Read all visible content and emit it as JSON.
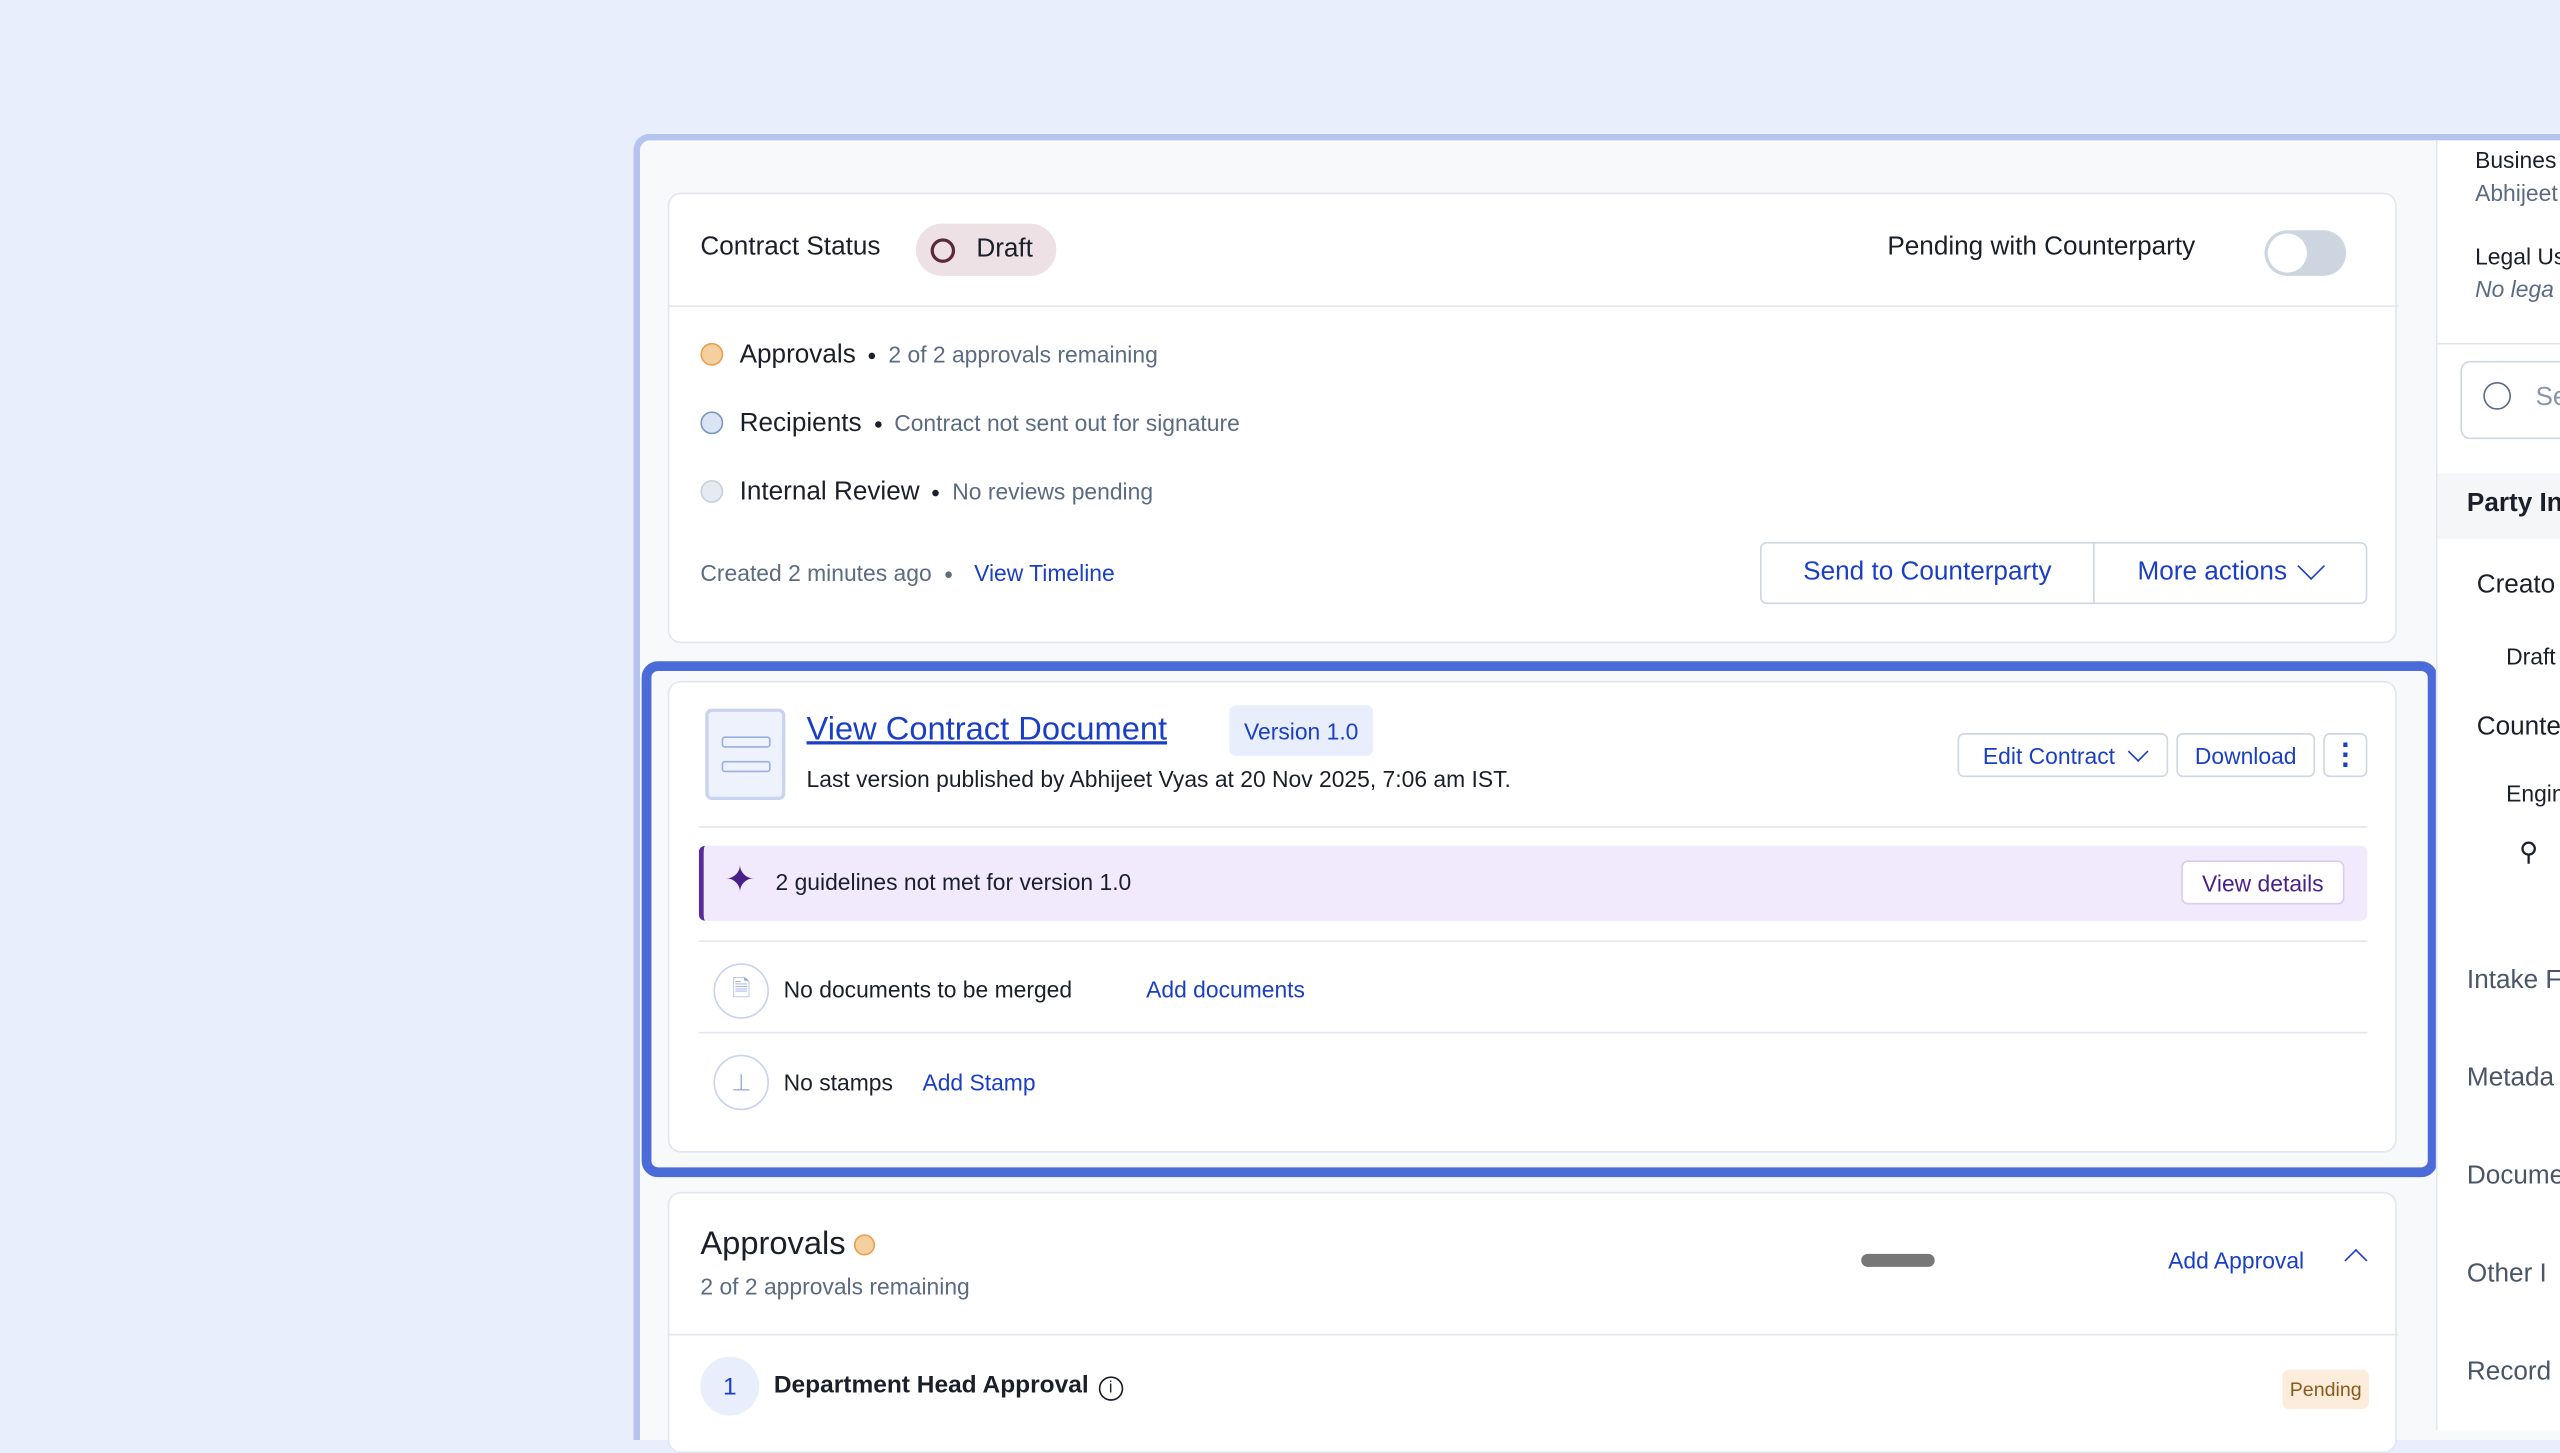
{
  "status_card": {
    "label": "Contract Status",
    "status": "Draft",
    "pending_label": "Pending with Counterparty",
    "pending_on": false,
    "rows": [
      {
        "title": "Approvals",
        "detail": "2 of 2 approvals remaining",
        "icon": "clock-icon"
      },
      {
        "title": "Recipients",
        "detail": "Contract not sent out for signature",
        "icon": "minus-circle-icon"
      },
      {
        "title": "Internal Review",
        "detail": "No reviews pending",
        "icon": "check-circle-icon"
      }
    ],
    "created": "Created 2 minutes ago",
    "view_timeline": "View Timeline",
    "send": "Send to Counterparty",
    "more": "More actions"
  },
  "document_card": {
    "title": "View Contract Document",
    "version": "Version 1.0",
    "published": "Last version published by Abhijeet Vyas at 20 Nov 2025, 7:06 am IST.",
    "edit": "Edit Contract",
    "download": "Download",
    "guidelines": "2 guidelines not met for version 1.0",
    "view_details": "View details",
    "merge_text": "No documents to be merged",
    "add_documents": "Add documents",
    "stamps_text": "No stamps",
    "add_stamp": "Add Stamp"
  },
  "approvals_card": {
    "title": "Approvals",
    "subtitle": "2 of 2 approvals remaining",
    "add": "Add Approval",
    "items": [
      {
        "index": "1",
        "name": "Department Head Approval",
        "status": "Pending"
      }
    ]
  },
  "right_panel": {
    "business_label": "Busines",
    "business_value": "Abhijeet",
    "legal_label": "Legal Us",
    "legal_value": "No lega",
    "search_placeholder": "Se",
    "party_heading": "Party In",
    "creator": "Creato",
    "creator_value": "Draft",
    "counter": "Counte",
    "counter_value": "Engin",
    "sections": [
      "Intake F",
      "Metada",
      "Docume",
      "Other I",
      "Record"
    ]
  },
  "colors": {
    "accent": "#1a3fc4",
    "highlight": "#4a6bd8",
    "banner": "#f1eafc",
    "pending_bg": "#fbecdc"
  }
}
